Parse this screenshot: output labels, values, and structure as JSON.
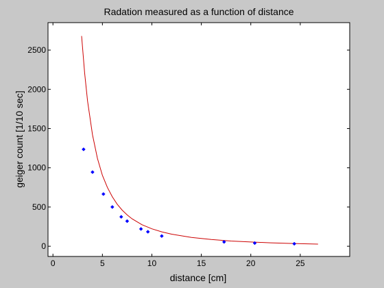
{
  "chart_data": {
    "type": "scatter",
    "title": "Radation measured as a function of distance",
    "xlabel": "distance [cm]",
    "ylabel": "geiger count [1/10 sec]",
    "xlim": [
      -0.5,
      30
    ],
    "ylim": [
      -130,
      2850
    ],
    "xticks": [
      0,
      5,
      10,
      15,
      20,
      25
    ],
    "yticks": [
      0,
      500,
      1000,
      1500,
      2000,
      2500
    ],
    "grid": false,
    "legend": "none",
    "series": [
      {
        "kind": "points",
        "color": "#0000ff",
        "x": [
          3.1,
          4.0,
          5.1,
          6.0,
          6.9,
          7.5,
          8.9,
          9.6,
          11.0,
          17.3,
          20.4,
          24.4
        ],
        "y": [
          1235,
          945,
          665,
          500,
          375,
          320,
          220,
          185,
          130,
          55,
          40,
          32
        ]
      },
      {
        "kind": "fit-curve",
        "color": "#cc0000",
        "x": [
          2.9,
          3.2,
          3.5,
          4.0,
          4.5,
          5.0,
          5.5,
          6.0,
          6.5,
          7.0,
          7.5,
          8.0,
          9.0,
          10.0,
          11.0,
          12.0,
          14.0,
          16.0,
          18.0,
          20.0,
          22.0,
          24.0,
          26.8
        ],
        "y": [
          2680,
          2210,
          1850,
          1420,
          1120,
          905,
          750,
          630,
          535,
          460,
          400,
          350,
          275,
          222,
          184,
          154,
          112,
          86,
          67,
          54,
          44,
          36,
          27
        ]
      }
    ]
  }
}
